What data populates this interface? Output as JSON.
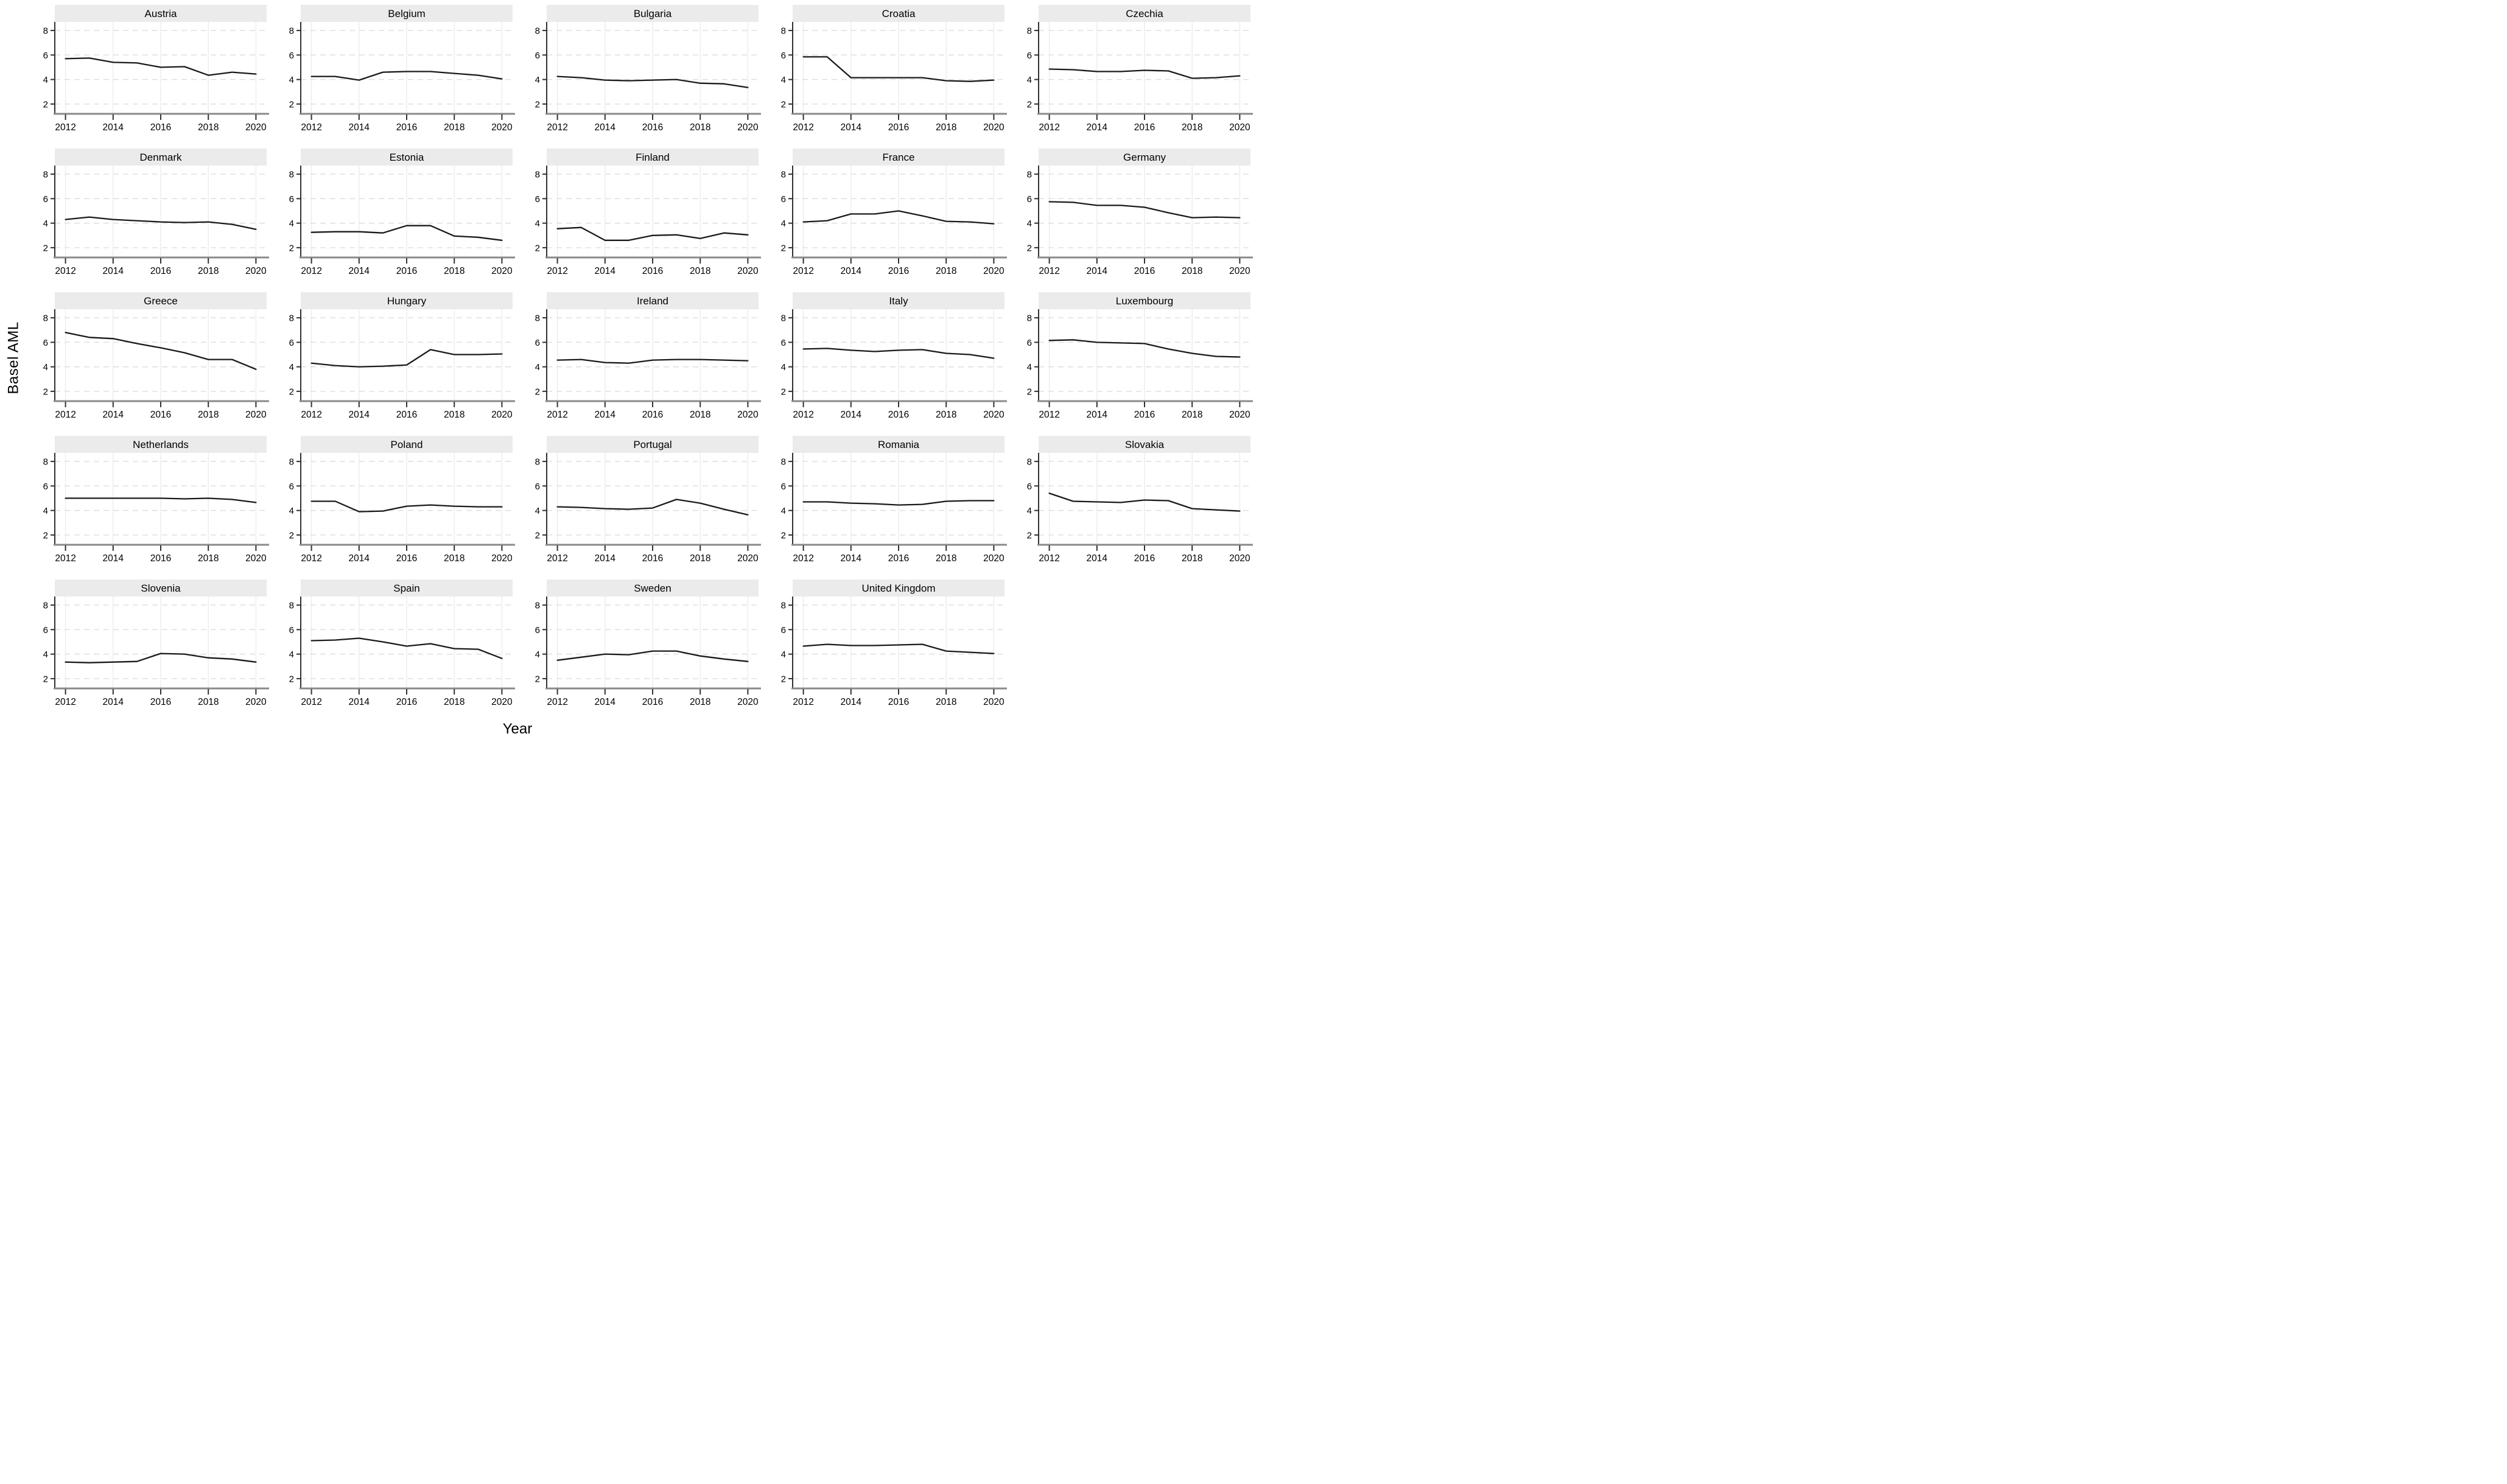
{
  "chart_data": {
    "type": "line",
    "layout": "small-multiples-grid-5-cols",
    "title": "",
    "xlabel": "Year",
    "ylabel": "Basel AML",
    "x": [
      2012,
      2013,
      2014,
      2015,
      2016,
      2017,
      2018,
      2019,
      2020
    ],
    "xticks": [
      2012,
      2014,
      2016,
      2018,
      2020
    ],
    "yticks": [
      2,
      4,
      6,
      8
    ],
    "xlim": [
      2011.55,
      2020.45
    ],
    "ylim": [
      1.25,
      8.7
    ],
    "grid": true,
    "legend_position": "none",
    "series": [
      {
        "name": "Austria",
        "values": [
          5.7,
          5.75,
          5.4,
          5.35,
          5.0,
          5.05,
          4.35,
          4.6,
          4.45
        ]
      },
      {
        "name": "Belgium",
        "values": [
          4.25,
          4.25,
          3.95,
          4.6,
          4.65,
          4.65,
          4.5,
          4.35,
          4.05
        ]
      },
      {
        "name": "Bulgaria",
        "values": [
          4.25,
          4.15,
          3.95,
          3.9,
          3.95,
          4.0,
          3.7,
          3.65,
          3.35
        ]
      },
      {
        "name": "Croatia",
        "values": [
          5.85,
          5.85,
          4.15,
          4.15,
          4.15,
          4.15,
          3.9,
          3.85,
          3.95
        ]
      },
      {
        "name": "Czechia",
        "values": [
          4.85,
          4.8,
          4.65,
          4.65,
          4.75,
          4.7,
          4.1,
          4.15,
          4.3
        ]
      },
      {
        "name": "Denmark",
        "values": [
          4.3,
          4.5,
          4.3,
          4.2,
          4.1,
          4.05,
          4.1,
          3.9,
          3.5
        ]
      },
      {
        "name": "Estonia",
        "values": [
          3.25,
          3.3,
          3.3,
          3.2,
          3.8,
          3.8,
          2.95,
          2.85,
          2.6
        ]
      },
      {
        "name": "Finland",
        "values": [
          3.55,
          3.65,
          2.6,
          2.6,
          3.0,
          3.05,
          2.75,
          3.2,
          3.05
        ]
      },
      {
        "name": "France",
        "values": [
          4.1,
          4.2,
          4.75,
          4.75,
          5.0,
          4.6,
          4.15,
          4.1,
          3.95
        ]
      },
      {
        "name": "Germany",
        "values": [
          5.75,
          5.7,
          5.45,
          5.45,
          5.3,
          4.85,
          4.45,
          4.5,
          4.45
        ]
      },
      {
        "name": "Greece",
        "values": [
          6.8,
          6.4,
          6.3,
          5.9,
          5.55,
          5.15,
          4.6,
          4.6,
          3.8
        ]
      },
      {
        "name": "Hungary",
        "values": [
          4.3,
          4.1,
          4.0,
          4.05,
          4.15,
          5.4,
          5.0,
          5.0,
          5.05
        ]
      },
      {
        "name": "Ireland",
        "values": [
          4.55,
          4.6,
          4.35,
          4.3,
          4.55,
          4.6,
          4.6,
          4.55,
          4.5
        ]
      },
      {
        "name": "Italy",
        "values": [
          5.45,
          5.5,
          5.35,
          5.25,
          5.35,
          5.4,
          5.1,
          5.0,
          4.7
        ]
      },
      {
        "name": "Luxembourg",
        "values": [
          6.15,
          6.2,
          6.0,
          5.95,
          5.9,
          5.45,
          5.1,
          4.85,
          4.8
        ]
      },
      {
        "name": "Netherlands",
        "values": [
          5.0,
          5.0,
          5.0,
          5.0,
          5.0,
          4.95,
          5.0,
          4.9,
          4.65
        ]
      },
      {
        "name": "Poland",
        "values": [
          4.75,
          4.75,
          3.9,
          3.95,
          4.35,
          4.45,
          4.35,
          4.3,
          4.3
        ]
      },
      {
        "name": "Portugal",
        "values": [
          4.3,
          4.25,
          4.15,
          4.1,
          4.2,
          4.9,
          4.6,
          4.1,
          3.65
        ]
      },
      {
        "name": "Romania",
        "values": [
          4.7,
          4.7,
          4.6,
          4.55,
          4.45,
          4.5,
          4.75,
          4.8,
          4.8
        ]
      },
      {
        "name": "Slovakia",
        "values": [
          5.4,
          4.75,
          4.7,
          4.65,
          4.85,
          4.8,
          4.15,
          4.05,
          3.95
        ]
      },
      {
        "name": "Slovenia",
        "values": [
          3.35,
          3.3,
          3.35,
          3.4,
          4.05,
          4.0,
          3.7,
          3.6,
          3.35
        ]
      },
      {
        "name": "Spain",
        "values": [
          5.1,
          5.15,
          5.3,
          5.0,
          4.65,
          4.85,
          4.45,
          4.4,
          3.65
        ]
      },
      {
        "name": "Sweden",
        "values": [
          3.5,
          3.75,
          4.0,
          3.95,
          4.25,
          4.25,
          3.85,
          3.6,
          3.4
        ]
      },
      {
        "name": "United Kingdom",
        "values": [
          4.65,
          4.8,
          4.7,
          4.7,
          4.75,
          4.8,
          4.25,
          4.15,
          4.05
        ]
      }
    ],
    "colors": {
      "line": "#1a1a1a",
      "title_strip_bg": "#ebebeb",
      "grid_vertical": "#ececec",
      "grid_horizontal": "#dedede",
      "axis_left": "#303030",
      "axis_bottom": "#8a8a8a",
      "tick": "#303030",
      "text": "#000000",
      "background": "#ffffff"
    }
  }
}
